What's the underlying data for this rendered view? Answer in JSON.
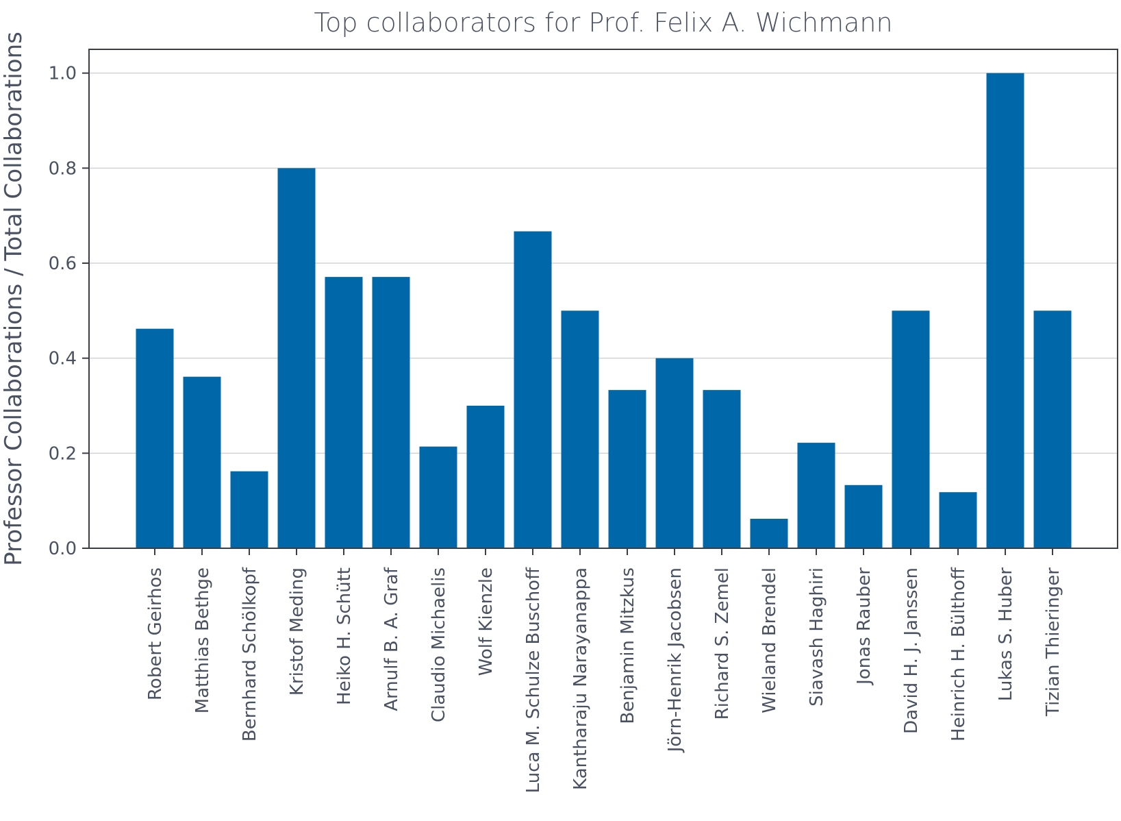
{
  "chart_data": {
    "type": "bar",
    "title": "Top collaborators for Prof. Felix A. Wichmann",
    "xlabel": "",
    "ylabel": "Professor Collaborations / Total Collaborations",
    "ylim": [
      0,
      1.05
    ],
    "yticks": [
      0.0,
      0.2,
      0.4,
      0.6,
      0.8,
      1.0
    ],
    "ytick_labels": [
      "0.0",
      "0.2",
      "0.4",
      "0.6",
      "0.8",
      "1.0"
    ],
    "grid": "horizontal",
    "bar_color": "#0068a8",
    "categories": [
      "Robert Geirhos",
      "Matthias Bethge",
      "Bernhard Schölkopf",
      "Kristof Meding",
      "Heiko H. Schütt",
      "Arnulf B. A. Graf",
      "Claudio Michaelis",
      "Wolf Kienzle",
      "Luca M. Schulze Buschoff",
      "Kantharaju Narayanappa",
      "Benjamin Mitzkus",
      "Jörn-Henrik Jacobsen",
      "Richard S. Zemel",
      "Wieland Brendel",
      "Siavash Haghiri",
      "Jonas Rauber",
      "David H. J. Janssen",
      "Heinrich H. Bülthoff",
      "Lukas S. Huber",
      "Tizian Thieringer"
    ],
    "values": [
      0.462,
      0.361,
      0.162,
      0.8,
      0.571,
      0.571,
      0.214,
      0.3,
      0.667,
      0.5,
      0.333,
      0.4,
      0.333,
      0.062,
      0.222,
      0.133,
      0.5,
      0.118,
      1.0,
      0.5
    ]
  }
}
